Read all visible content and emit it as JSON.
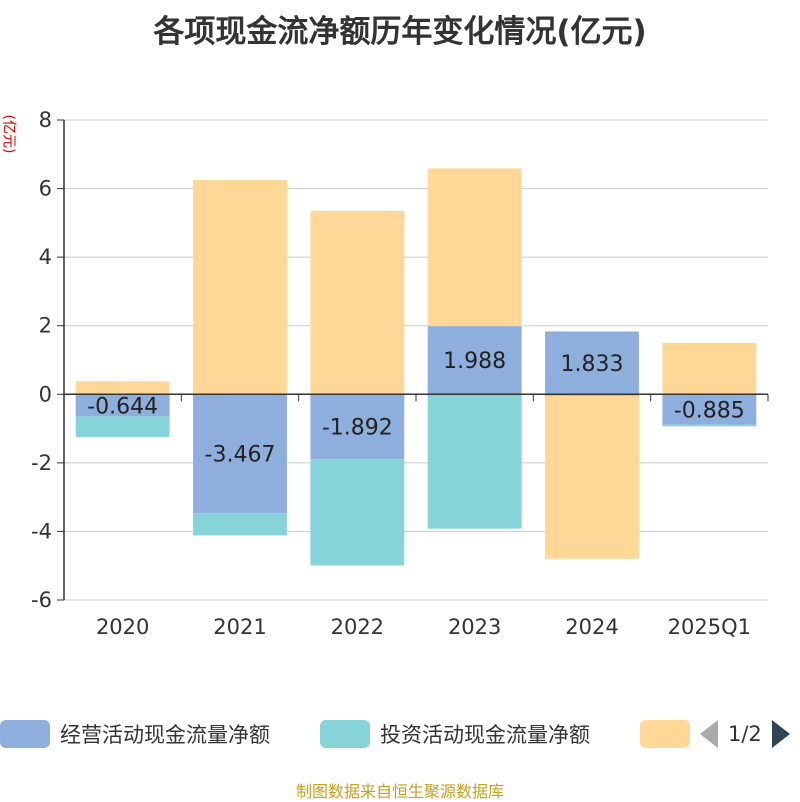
{
  "title": "各项现金流净额历年变化情况(亿元)",
  "unit": "(亿元)",
  "source": "制图数据来自恒生聚源数据库",
  "legend": {
    "items": [
      {
        "label": "经营活动现金流量净额",
        "color": "#8eaedc"
      },
      {
        "label": "投资活动现金流量净额",
        "color": "#86d4d8"
      },
      {
        "label": "",
        "color": "#ffd898"
      }
    ],
    "pager": "1/2"
  },
  "chart_data": {
    "type": "bar",
    "stacked": true,
    "categories": [
      "2020",
      "2021",
      "2022",
      "2023",
      "2024",
      "2025Q1"
    ],
    "ylim": [
      -6,
      8
    ],
    "yticks": [
      -6,
      -4,
      -2,
      0,
      2,
      4,
      6,
      8
    ],
    "grid": true,
    "legend_position": "bottom",
    "series": [
      {
        "name": "经营活动现金流量净额",
        "color": "#8eaedc",
        "values": [
          -0.644,
          -3.467,
          -1.892,
          1.988,
          1.833,
          -0.885
        ],
        "labels": [
          "-0.644",
          "-3.467",
          "-1.892",
          "1.988",
          "1.833",
          "-0.885"
        ]
      },
      {
        "color": "#86d4d8",
        "values": [
          -0.6,
          -0.65,
          -3.1,
          -3.92,
          -0.05,
          -0.05
        ]
      },
      {
        "color": "#ffd898",
        "values": [
          0.38,
          6.25,
          5.35,
          4.6,
          -4.75,
          1.5
        ]
      }
    ]
  }
}
